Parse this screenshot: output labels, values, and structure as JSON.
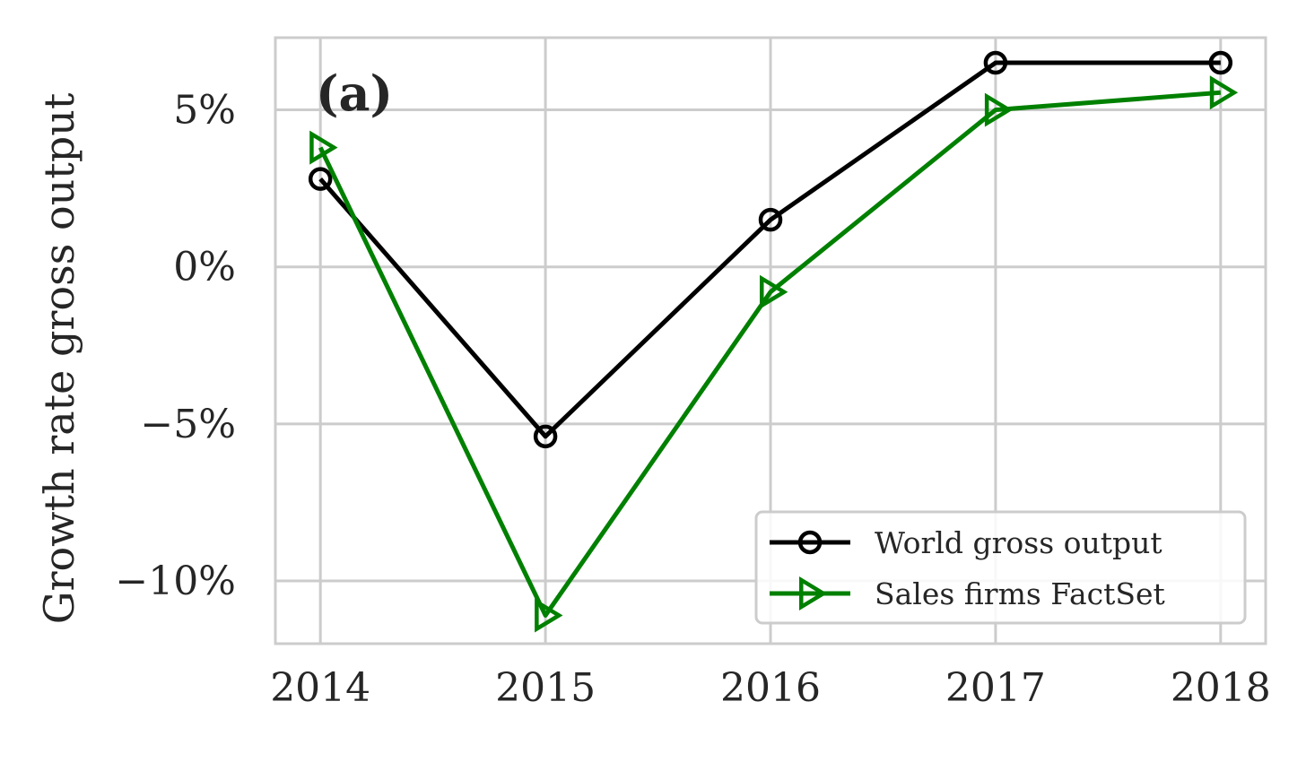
{
  "chart_data": {
    "type": "line",
    "x": [
      2014,
      2015,
      2016,
      2017,
      2018
    ],
    "x_tick_labels": [
      "2014",
      "2015",
      "2016",
      "2017",
      "2018"
    ],
    "y_ticks": [
      5,
      0,
      -5,
      -10
    ],
    "y_tick_labels": [
      "5%",
      "0%",
      "−5%",
      "−10%"
    ],
    "ylabel": "Growth rate gross output",
    "xlabel": "",
    "title": "",
    "panel_label": "(a)",
    "xlim": [
      2013.8,
      2018.2
    ],
    "ylim": [
      -12,
      7.3
    ],
    "grid": true,
    "legend_position": "bottom-right",
    "series": [
      {
        "name": "World gross output",
        "color": "#000000",
        "marker": "circle-open",
        "values": [
          2.8,
          -5.4,
          1.5,
          6.5,
          6.5
        ]
      },
      {
        "name": "Sales firms FactSet",
        "color": "#008000",
        "marker": "triangle-right-open",
        "values": [
          3.8,
          -11.1,
          -0.8,
          5.0,
          5.55
        ]
      }
    ]
  }
}
